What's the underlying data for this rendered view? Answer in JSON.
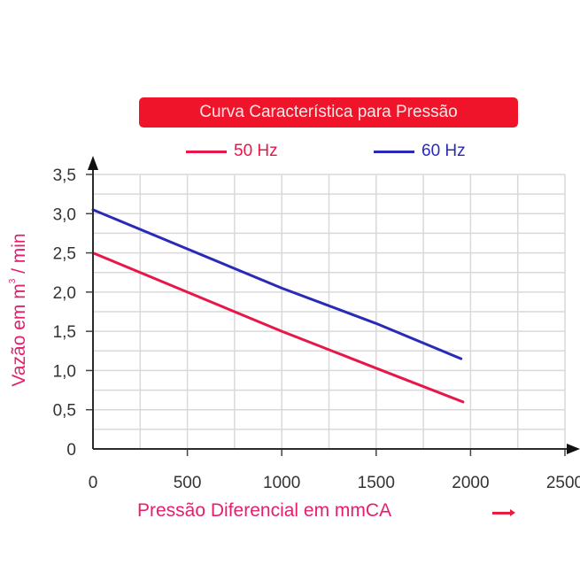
{
  "chart_data": {
    "type": "line",
    "title": "Curva Característica para Pressão",
    "xlabel": "Pressão Diferencial em mmCA",
    "ylabel": "Vazão em m³ / min",
    "ylabel_parts": {
      "before": "Vazão em m",
      "sup": "3",
      "after": " / min"
    },
    "xlim": [
      0,
      2500
    ],
    "ylim": [
      0,
      3.5
    ],
    "x_ticks": [
      0,
      500,
      1000,
      1500,
      2000,
      2500
    ],
    "x_tick_labels": [
      "0",
      "500",
      "1000",
      "1500",
      "2000",
      "2500"
    ],
    "y_ticks": [
      0,
      0.5,
      1.0,
      1.5,
      2.0,
      2.5,
      3.0,
      3.5
    ],
    "y_tick_labels": [
      "0",
      "0,5",
      "1,0",
      "1,5",
      "2,0",
      "2,5",
      "3,0",
      "3,5"
    ],
    "grid": true,
    "grid_x_step": 250,
    "grid_y_step": 0.25,
    "legend_position": "top",
    "series": [
      {
        "name": "50 Hz",
        "color": "#e8174a",
        "x": [
          0,
          500,
          1000,
          1500,
          1960
        ],
        "values": [
          2.5,
          2.0,
          1.5,
          1.03,
          0.6
        ]
      },
      {
        "name": "60 Hz",
        "color": "#2a2ab8",
        "x": [
          0,
          500,
          1000,
          1500,
          1950
        ],
        "values": [
          3.05,
          2.55,
          2.05,
          1.6,
          1.15
        ]
      }
    ]
  },
  "header": {
    "title": "Curva Característica para Pressão",
    "title_bg": "#f0142a"
  },
  "legend": {
    "items": [
      {
        "label": "50 Hz",
        "color": "#e8174a"
      },
      {
        "label": "60 Hz",
        "color": "#2a2ab8"
      }
    ]
  },
  "axes": {
    "x_label": "Pressão Diferencial em mmCA",
    "y_label_before": "Vazão em m",
    "y_label_sup": "3",
    "y_label_after": " / min"
  }
}
